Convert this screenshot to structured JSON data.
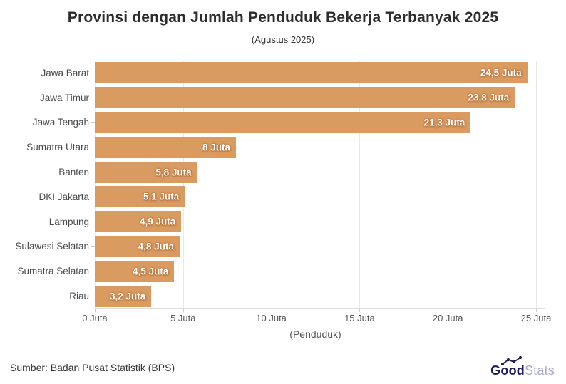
{
  "header": {
    "title": "Provinsi dengan Jumlah Penduduk Bekerja Terbanyak 2025",
    "subtitle": "(Agustus 2025)"
  },
  "chart_data": {
    "type": "bar",
    "orientation": "horizontal",
    "title": "Provinsi dengan Jumlah Penduduk Bekerja Terbanyak 2025",
    "subtitle": "(Agustus 2025)",
    "categories": [
      "Jawa Barat",
      "Jawa Timur",
      "Jawa Tengah",
      "Sumatra Utara",
      "Banten",
      "DKI Jakarta",
      "Lampung",
      "Sulawesi Selatan",
      "Sumatra Selatan",
      "Riau"
    ],
    "values": [
      24.5,
      23.8,
      21.3,
      8,
      5.8,
      5.1,
      4.9,
      4.8,
      4.5,
      3.2
    ],
    "value_labels": [
      "24,5 Juta",
      "23,8 Juta",
      "21,3 Juta",
      "8 Juta",
      "5,8 Juta",
      "5,1 Juta",
      "4,9 Juta",
      "4,8 Juta",
      "4,5 Juta",
      "3,2 Juta"
    ],
    "x_ticks": [
      "0 Juta",
      "5 Juta",
      "10 Juta",
      "15 Juta",
      "20 Juta",
      "25 Juta"
    ],
    "xlim": [
      0,
      25
    ],
    "xlabel": "(Penduduk)",
    "ylabel": "",
    "grid": true,
    "legend": "none",
    "bar_color": "#da9b61",
    "value_label_color": "#ffffff"
  },
  "footer": {
    "source": "Sumber: Badan Pusat Statistik (BPS)",
    "logo": {
      "good": "Good",
      "stats": "Stats"
    }
  }
}
